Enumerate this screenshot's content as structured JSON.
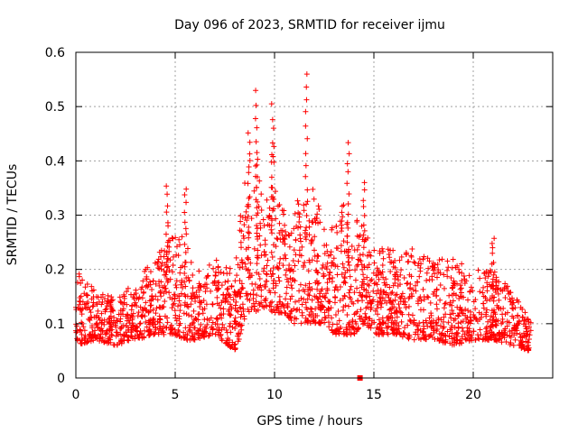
{
  "chart_data": {
    "type": "scatter",
    "title": "Day 096 of 2023, SRMTID for receiver ijmu",
    "xlabel": "GPS time / hours",
    "ylabel": "SRMTID / TECUs",
    "xlim": [
      0,
      24
    ],
    "ylim": [
      0,
      0.6
    ],
    "x_ticks": [
      0,
      5,
      10,
      15,
      20
    ],
    "y_ticks": [
      0,
      0.1,
      0.2,
      0.3,
      0.4,
      0.5,
      0.6
    ],
    "x_tick_labels": [
      "0",
      "5",
      "10",
      "15",
      "20"
    ],
    "y_tick_labels": [
      "0",
      "0.1",
      "0.2",
      "0.3",
      "0.4",
      "0.5",
      "0.6"
    ],
    "grid": true,
    "marker": "plus",
    "color": "#ff0000",
    "x_range_observed": [
      0,
      22.9
    ],
    "series": [
      {
        "name": "SRMTID",
        "envelope_hours": [
          0,
          1,
          2,
          3,
          4,
          4.5,
          5,
          5.5,
          6,
          7,
          8,
          8.5,
          9,
          9.5,
          10,
          10.5,
          11,
          11.5,
          12,
          12.5,
          13,
          13.5,
          14,
          14.5,
          15,
          16,
          17,
          18,
          19,
          20,
          21,
          22,
          22.8
        ],
        "typical_low": [
          0.06,
          0.07,
          0.06,
          0.07,
          0.08,
          0.08,
          0.08,
          0.07,
          0.07,
          0.08,
          0.05,
          0.1,
          0.12,
          0.13,
          0.12,
          0.12,
          0.1,
          0.1,
          0.1,
          0.1,
          0.08,
          0.08,
          0.08,
          0.1,
          0.08,
          0.08,
          0.07,
          0.07,
          0.06,
          0.07,
          0.07,
          0.06,
          0.05
        ],
        "typical_high": [
          0.2,
          0.16,
          0.15,
          0.18,
          0.22,
          0.3,
          0.26,
          0.27,
          0.2,
          0.22,
          0.2,
          0.38,
          0.45,
          0.3,
          0.44,
          0.3,
          0.33,
          0.32,
          0.36,
          0.28,
          0.3,
          0.33,
          0.3,
          0.28,
          0.24,
          0.24,
          0.24,
          0.22,
          0.22,
          0.2,
          0.2,
          0.16,
          0.11
        ],
        "peaks": [
          {
            "x": 4.6,
            "y": 0.35
          },
          {
            "x": 5.5,
            "y": 0.35
          },
          {
            "x": 8.7,
            "y": 0.45
          },
          {
            "x": 9.1,
            "y": 0.525
          },
          {
            "x": 9.9,
            "y": 0.5
          },
          {
            "x": 11.6,
            "y": 0.56
          },
          {
            "x": 13.7,
            "y": 0.43
          },
          {
            "x": 14.5,
            "y": 0.36
          },
          {
            "x": 21.0,
            "y": 0.26
          }
        ],
        "outliers": [
          {
            "x": 14.3,
            "y": 0.0
          }
        ]
      }
    ]
  }
}
